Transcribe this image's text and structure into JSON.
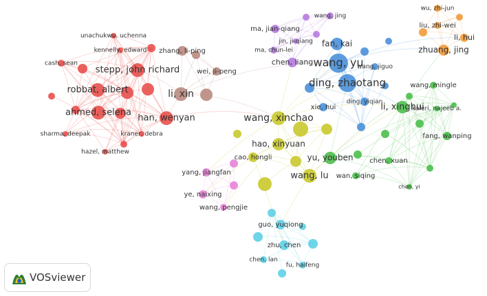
{
  "brand": "VOSviewer",
  "nodes": [
    {
      "label": "unachukwu, uchenna"
    },
    {
      "label": "kennelly, edward"
    },
    {
      "label": "cash, sean"
    },
    {
      "label": "stepp, john richard"
    },
    {
      "label": "robbat, albert"
    },
    {
      "label": "ahmed, selena"
    },
    {
      "label": "sharma, deepak"
    },
    {
      "label": "kraner, debra"
    },
    {
      "label": "hazel, matthew"
    },
    {
      "label": "han, wenyan"
    },
    {
      "label": "zhang, li-ping"
    },
    {
      "label": "wei, ji-peng"
    },
    {
      "label": "li, xin"
    },
    {
      "label": "wang, jing"
    },
    {
      "label": "ma, jian-qiang"
    },
    {
      "label": "jin, ji-qiang"
    },
    {
      "label": "ma, chun-lei"
    },
    {
      "label": "chen, liang"
    },
    {
      "label": "fan, kai"
    },
    {
      "label": "wang, yu"
    },
    {
      "label": "wang, jiguo"
    },
    {
      "label": "ding, zhaotang"
    },
    {
      "label": "xie, hui"
    },
    {
      "label": "ding, yiqian"
    },
    {
      "label": "wu, zhi-jun"
    },
    {
      "label": "liu, zhi-wei"
    },
    {
      "label": "li, hui"
    },
    {
      "label": "zhuang, jing"
    },
    {
      "label": "wang, mingle"
    },
    {
      "label": "kaleri, najeeb a."
    },
    {
      "label": "li, xinghui"
    },
    {
      "label": "fang, wanping"
    },
    {
      "label": "yu, youben"
    },
    {
      "label": "chen, xuan"
    },
    {
      "label": "wan, siqing"
    },
    {
      "label": "chen, yi"
    },
    {
      "label": "wang, xinchao"
    },
    {
      "label": "hao, xinyuan"
    },
    {
      "label": "cao, hongli"
    },
    {
      "label": "wang, lu"
    },
    {
      "label": "yang, jiangfan"
    },
    {
      "label": "ye, naixing"
    },
    {
      "label": "wang, pengjie"
    },
    {
      "label": "guo, yuqiong"
    },
    {
      "label": "zhu, chen"
    },
    {
      "label": "chen, lan"
    },
    {
      "label": "fu, haifeng"
    }
  ]
}
